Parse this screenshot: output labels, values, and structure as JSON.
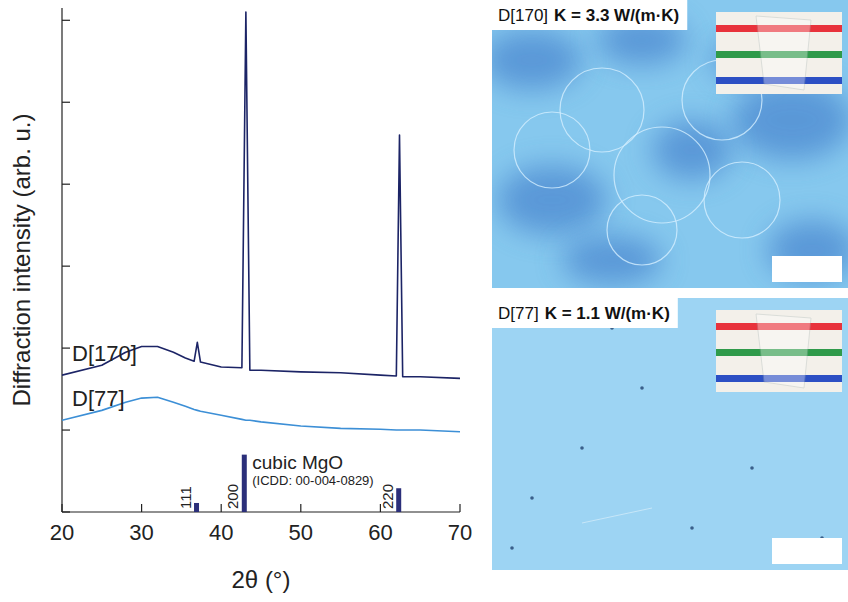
{
  "chart_data": {
    "type": "line",
    "x_label": "2θ (°)",
    "y_label": "Diffraction intensity (arb. u.)",
    "xlim": [
      20,
      70
    ],
    "xticks": [
      20,
      30,
      40,
      50,
      60,
      70
    ],
    "ylim": [
      0,
      61.5
    ],
    "yticks": [
      0,
      10,
      20,
      30,
      40,
      50,
      60
    ],
    "tick_labels": "x",
    "x": [
      20,
      25,
      28,
      30,
      32,
      34,
      35.5,
      36.6,
      37.0,
      37.4,
      40,
      42.6,
      43.1,
      43.6,
      45,
      50,
      55,
      60,
      62.0,
      62.4,
      62.8,
      65,
      70
    ],
    "series": [
      {
        "name": "D[170]",
        "color": "#1c2466",
        "values": [
          16.7,
          17.9,
          19.5,
          20.2,
          20.2,
          19.5,
          18.8,
          18.4,
          20.7,
          18.3,
          17.7,
          17.6,
          61,
          17.3,
          17.3,
          17.1,
          17.0,
          16.7,
          16.6,
          46.0,
          16.5,
          16.5,
          16.3
        ]
      },
      {
        "name": "D[77]",
        "color": "#3c8fd6",
        "values": [
          11.2,
          12.4,
          13.4,
          13.9,
          14.0,
          13.4,
          12.9,
          12.5,
          12.4,
          12.3,
          11.8,
          11.3,
          11.2,
          11.2,
          11.0,
          10.5,
          10.2,
          10.1,
          10.0,
          10.0,
          10.0,
          10.0,
          9.8
        ]
      }
    ],
    "reference": {
      "type": "bar",
      "name": "cubic MgO",
      "source": "(ICDD: 00-004-0829)",
      "color": "#2b2f7a",
      "x": [
        36.9,
        42.9,
        62.3
      ],
      "values": [
        1.1,
        7.0,
        2.9
      ],
      "labels": [
        "111",
        "200",
        "220"
      ]
    }
  },
  "micrographs": [
    {
      "sample": "D[170]",
      "label": "K = 3.3 W/(m·K)"
    },
    {
      "sample": "D[77]",
      "label": "K = 1.1 W/(m·K)"
    }
  ]
}
